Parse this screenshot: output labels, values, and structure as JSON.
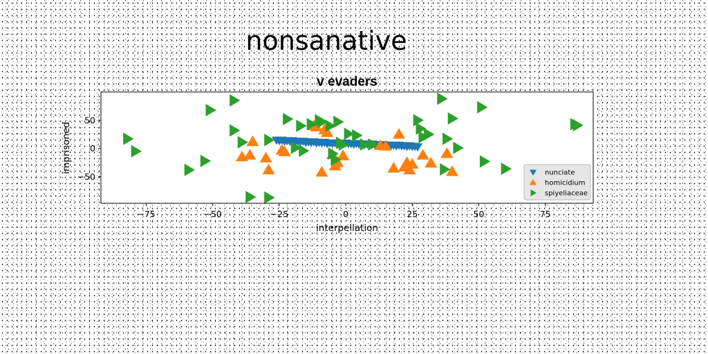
{
  "chart_data": {
    "type": "scatter",
    "suptitle": "nonsanative",
    "title": "v evaders",
    "xlabel": "interpellation",
    "ylabel": "imprisoned",
    "xlim": [
      -92,
      93
    ],
    "ylim": [
      -97,
      100
    ],
    "xticks": [
      -75,
      -50,
      -25,
      0,
      25,
      50,
      75
    ],
    "yticks": [
      -50,
      0,
      50
    ],
    "xtick_labels": [
      "−75",
      "−50",
      "−25",
      "0",
      "25",
      "50",
      "75"
    ],
    "ytick_labels": [
      "−50",
      "0",
      "50"
    ],
    "grid": false,
    "legend_position": "lower-right",
    "series": [
      {
        "name": "nunciate",
        "marker": "triangle-down",
        "color": "#1f77b4",
        "x": [
          -26,
          -25,
          -24,
          -23,
          -22,
          -21,
          -20,
          -19,
          -18,
          -17,
          -16,
          -15,
          -14,
          -13,
          -12,
          -11,
          -10,
          -9,
          -8,
          -7,
          -6,
          -5,
          -4,
          -3,
          -2,
          -1,
          0,
          1,
          2,
          3,
          4,
          5,
          6,
          7,
          8,
          9,
          10,
          11,
          12,
          13,
          14,
          15,
          16,
          17,
          18,
          19,
          20,
          21,
          22,
          23,
          24,
          25,
          26,
          27
        ],
        "y": [
          15,
          14,
          15,
          13,
          14,
          13,
          14,
          12,
          13,
          12,
          13,
          11,
          12,
          11,
          12,
          10,
          11,
          10,
          11,
          9,
          10,
          9,
          10,
          8,
          9,
          9,
          10,
          9,
          9,
          8,
          9,
          8,
          8,
          7,
          8,
          7,
          8,
          7,
          7,
          6,
          7,
          6,
          6,
          5,
          6,
          5,
          6,
          5,
          5,
          4,
          5,
          4,
          4,
          3
        ]
      },
      {
        "name": "homicidium",
        "marker": "triangle-up",
        "color": "#ff7f0e",
        "x": [
          -39,
          -36,
          -35,
          -30,
          -29,
          -24,
          -23,
          -12,
          -11,
          -9,
          -8,
          -7,
          -5,
          -4,
          -3,
          -1,
          13,
          15,
          18,
          20,
          22,
          23,
          24,
          25,
          29,
          32,
          38,
          40
        ],
        "y": [
          -15,
          -12,
          12,
          -17,
          -38,
          -3,
          -6,
          40,
          38,
          -42,
          33,
          28,
          -11,
          -31,
          -25,
          -13,
          5,
          4,
          -35,
          25,
          -33,
          -25,
          -38,
          -28,
          -12,
          -26,
          -9,
          -41
        ]
      },
      {
        "name": "spiyeliaceae",
        "marker": "triangle-right",
        "color": "#2ca02c",
        "x": [
          -82,
          -79,
          -59,
          -53,
          -51,
          -42,
          -42,
          -39,
          -36,
          -29,
          -29,
          -22,
          -19,
          -16,
          -17,
          -13,
          -10,
          -9,
          -6,
          -5,
          -4,
          -3,
          -2,
          -1,
          1,
          4,
          7,
          10,
          27,
          28,
          29,
          31,
          36,
          37,
          38,
          40,
          42,
          51,
          52,
          60,
          86,
          87
        ],
        "y": [
          17,
          -5,
          -38,
          -22,
          68,
          85,
          32,
          11,
          -86,
          -87,
          15,
          52,
          1,
          -4,
          40,
          43,
          50,
          47,
          40,
          -9,
          -20,
          47,
          10,
          7,
          26,
          23,
          7,
          7,
          50,
          35,
          20,
          25,
          88,
          -37,
          17,
          53,
          1,
          73,
          -23,
          -36,
          43,
          41
        ]
      }
    ]
  }
}
